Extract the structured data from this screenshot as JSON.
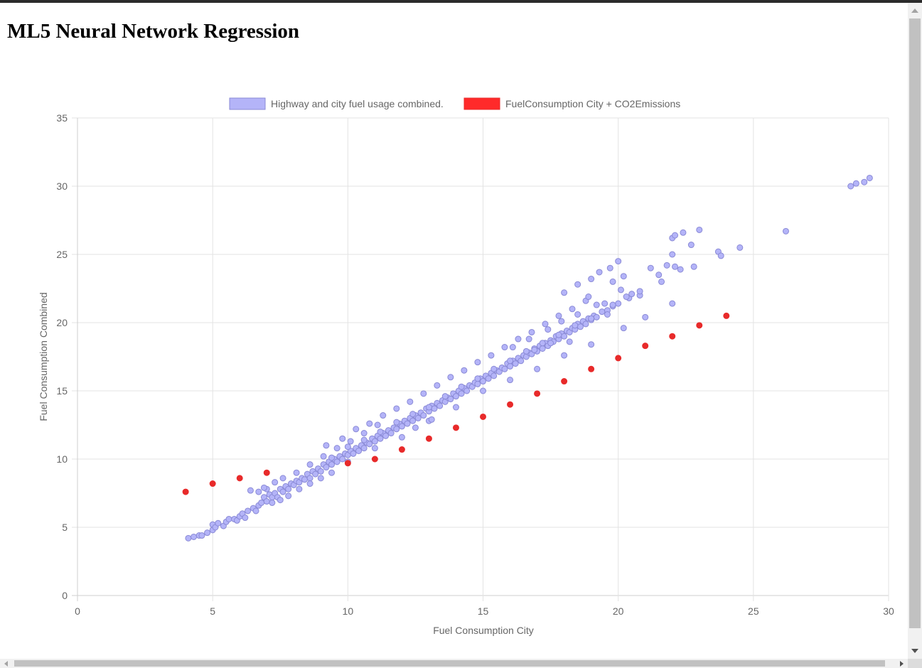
{
  "page": {
    "title": "ML5 Neural Network Regression"
  },
  "colors": {
    "series_a_fill": "#b4b4f8",
    "series_a_stroke": "#8a8ad6",
    "series_b": "#e82a2a",
    "grid": "#e3e3e3",
    "tick_text": "#666666"
  },
  "chart_data": {
    "type": "scatter",
    "xlabel": "Fuel Consumption City",
    "ylabel": "Fuel Consumption Combined",
    "xlim": [
      0,
      30
    ],
    "ylim": [
      0,
      35
    ],
    "xticks": [
      "0",
      "5",
      "10",
      "15",
      "20",
      "25",
      "30"
    ],
    "yticks": [
      "0",
      "5",
      "10",
      "15",
      "20",
      "25",
      "30",
      "35"
    ],
    "grid": true,
    "legend_position": "top",
    "series": [
      {
        "name": "Highway and city fuel usage combined.",
        "points": [
          [
            4.1,
            4.2
          ],
          [
            4.3,
            4.3
          ],
          [
            4.5,
            4.4
          ],
          [
            4.6,
            4.4
          ],
          [
            4.8,
            4.6
          ],
          [
            5.0,
            4.8
          ],
          [
            5.0,
            5.2
          ],
          [
            5.1,
            5.0
          ],
          [
            5.2,
            5.3
          ],
          [
            5.4,
            5.1
          ],
          [
            5.5,
            5.4
          ],
          [
            5.6,
            5.6
          ],
          [
            5.8,
            5.6
          ],
          [
            5.9,
            5.5
          ],
          [
            6.0,
            5.8
          ],
          [
            6.1,
            6.0
          ],
          [
            6.2,
            5.7
          ],
          [
            6.3,
            6.2
          ],
          [
            6.5,
            6.4
          ],
          [
            6.6,
            6.2
          ],
          [
            6.7,
            6.6
          ],
          [
            6.8,
            6.8
          ],
          [
            6.9,
            7.2
          ],
          [
            7.0,
            6.9
          ],
          [
            7.1,
            7.4
          ],
          [
            7.2,
            7.2
          ],
          [
            7.3,
            7.5
          ],
          [
            7.4,
            7.2
          ],
          [
            7.5,
            7.8
          ],
          [
            7.6,
            7.6
          ],
          [
            7.7,
            8.0
          ],
          [
            7.8,
            7.8
          ],
          [
            7.9,
            8.2
          ],
          [
            8.0,
            8.1
          ],
          [
            8.1,
            8.4
          ],
          [
            8.2,
            8.3
          ],
          [
            8.3,
            8.6
          ],
          [
            8.4,
            8.5
          ],
          [
            8.5,
            8.9
          ],
          [
            8.6,
            8.6
          ],
          [
            8.7,
            9.1
          ],
          [
            8.8,
            8.9
          ],
          [
            8.9,
            9.3
          ],
          [
            9.0,
            9.1
          ],
          [
            9.1,
            9.6
          ],
          [
            9.2,
            9.4
          ],
          [
            9.3,
            9.8
          ],
          [
            9.4,
            9.6
          ],
          [
            9.5,
            10.0
          ],
          [
            9.6,
            9.8
          ],
          [
            9.7,
            10.2
          ],
          [
            9.8,
            10.0
          ],
          [
            9.9,
            10.4
          ],
          [
            10.0,
            10.3
          ],
          [
            10.1,
            10.6
          ],
          [
            10.2,
            10.4
          ],
          [
            10.3,
            10.8
          ],
          [
            10.4,
            10.6
          ],
          [
            10.5,
            11.0
          ],
          [
            10.6,
            10.8
          ],
          [
            10.7,
            11.2
          ],
          [
            10.8,
            11.1
          ],
          [
            10.9,
            11.5
          ],
          [
            11.0,
            11.3
          ],
          [
            11.1,
            11.7
          ],
          [
            11.2,
            11.5
          ],
          [
            11.3,
            11.9
          ],
          [
            11.4,
            11.7
          ],
          [
            11.5,
            12.1
          ],
          [
            11.6,
            11.9
          ],
          [
            11.7,
            12.3
          ],
          [
            11.8,
            12.2
          ],
          [
            11.9,
            12.6
          ],
          [
            12.0,
            12.4
          ],
          [
            12.1,
            12.8
          ],
          [
            12.2,
            12.6
          ],
          [
            12.3,
            13.0
          ],
          [
            12.4,
            12.8
          ],
          [
            12.5,
            13.2
          ],
          [
            12.6,
            13.0
          ],
          [
            12.7,
            13.4
          ],
          [
            12.8,
            13.2
          ],
          [
            12.9,
            13.7
          ],
          [
            13.0,
            13.5
          ],
          [
            13.1,
            13.9
          ],
          [
            13.2,
            13.7
          ],
          [
            13.3,
            14.1
          ],
          [
            13.4,
            13.9
          ],
          [
            13.5,
            14.3
          ],
          [
            13.6,
            14.2
          ],
          [
            13.7,
            14.5
          ],
          [
            13.8,
            14.4
          ],
          [
            13.9,
            14.8
          ],
          [
            14.0,
            14.6
          ],
          [
            14.1,
            15.0
          ],
          [
            14.2,
            14.8
          ],
          [
            14.3,
            15.2
          ],
          [
            14.4,
            15.0
          ],
          [
            14.5,
            15.4
          ],
          [
            14.6,
            15.3
          ],
          [
            14.7,
            15.6
          ],
          [
            14.8,
            15.5
          ],
          [
            14.9,
            15.9
          ],
          [
            15.0,
            15.7
          ],
          [
            15.1,
            16.1
          ],
          [
            15.2,
            15.9
          ],
          [
            15.3,
            16.3
          ],
          [
            15.4,
            16.1
          ],
          [
            15.5,
            16.5
          ],
          [
            15.6,
            16.4
          ],
          [
            15.7,
            16.7
          ],
          [
            15.8,
            16.6
          ],
          [
            15.9,
            17.0
          ],
          [
            16.0,
            16.8
          ],
          [
            16.1,
            17.2
          ],
          [
            16.2,
            17.0
          ],
          [
            16.3,
            17.4
          ],
          [
            16.4,
            17.2
          ],
          [
            16.5,
            17.6
          ],
          [
            16.6,
            17.5
          ],
          [
            16.7,
            17.8
          ],
          [
            16.8,
            17.7
          ],
          [
            16.9,
            18.1
          ],
          [
            17.0,
            17.9
          ],
          [
            17.1,
            18.3
          ],
          [
            17.2,
            18.1
          ],
          [
            17.3,
            18.5
          ],
          [
            17.4,
            18.3
          ],
          [
            17.5,
            18.7
          ],
          [
            17.6,
            18.6
          ],
          [
            17.7,
            19.0
          ],
          [
            17.8,
            18.8
          ],
          [
            17.9,
            19.2
          ],
          [
            18.0,
            19.0
          ],
          [
            18.1,
            19.4
          ],
          [
            18.2,
            19.3
          ],
          [
            18.3,
            19.6
          ],
          [
            18.4,
            19.5
          ],
          [
            18.5,
            19.9
          ],
          [
            18.6,
            19.7
          ],
          [
            18.7,
            20.1
          ],
          [
            18.8,
            19.9
          ],
          [
            18.9,
            20.3
          ],
          [
            19.0,
            20.2
          ],
          [
            19.1,
            20.5
          ],
          [
            19.2,
            20.4
          ],
          [
            19.4,
            20.8
          ],
          [
            19.6,
            20.9
          ],
          [
            19.8,
            21.2
          ],
          [
            20.0,
            21.4
          ],
          [
            9.2,
            11.0
          ],
          [
            9.8,
            11.5
          ],
          [
            10.3,
            12.2
          ],
          [
            10.8,
            12.6
          ],
          [
            11.3,
            13.2
          ],
          [
            11.8,
            13.7
          ],
          [
            12.3,
            14.2
          ],
          [
            12.8,
            14.8
          ],
          [
            13.3,
            15.4
          ],
          [
            13.8,
            16.0
          ],
          [
            14.3,
            16.5
          ],
          [
            14.8,
            17.1
          ],
          [
            15.3,
            17.6
          ],
          [
            15.8,
            18.2
          ],
          [
            16.3,
            18.8
          ],
          [
            16.8,
            19.3
          ],
          [
            17.3,
            19.9
          ],
          [
            17.8,
            20.5
          ],
          [
            18.3,
            21.0
          ],
          [
            18.8,
            21.6
          ],
          [
            9.4,
            10.1
          ],
          [
            10.0,
            10.9
          ],
          [
            10.6,
            11.4
          ],
          [
            11.2,
            12.0
          ],
          [
            11.8,
            12.7
          ],
          [
            12.4,
            13.3
          ],
          [
            13.0,
            13.8
          ],
          [
            13.6,
            14.6
          ],
          [
            14.2,
            15.3
          ],
          [
            14.8,
            15.9
          ],
          [
            15.4,
            16.6
          ],
          [
            16.0,
            17.2
          ],
          [
            16.6,
            17.9
          ],
          [
            17.2,
            18.5
          ],
          [
            17.8,
            19.1
          ],
          [
            18.4,
            19.8
          ],
          [
            19.0,
            20.3
          ],
          [
            19.6,
            20.6
          ],
          [
            20.4,
            21.8
          ],
          [
            20.8,
            22.0
          ],
          [
            7.0,
            7.8
          ],
          [
            7.3,
            8.3
          ],
          [
            7.6,
            8.6
          ],
          [
            8.1,
            9.0
          ],
          [
            8.6,
            9.6
          ],
          [
            9.1,
            10.2
          ],
          [
            9.6,
            10.8
          ],
          [
            10.1,
            11.3
          ],
          [
            10.6,
            11.9
          ],
          [
            11.1,
            12.5
          ],
          [
            7.2,
            6.8
          ],
          [
            7.5,
            7.0
          ],
          [
            7.8,
            7.3
          ],
          [
            8.2,
            7.8
          ],
          [
            8.6,
            8.2
          ],
          [
            9.0,
            8.6
          ],
          [
            9.4,
            9.0
          ],
          [
            10.0,
            9.8
          ],
          [
            11.0,
            10.8
          ],
          [
            12.0,
            11.6
          ],
          [
            13.0,
            12.8
          ],
          [
            14.0,
            13.8
          ],
          [
            15.0,
            15.0
          ],
          [
            16.0,
            15.8
          ],
          [
            17.0,
            16.6
          ],
          [
            18.0,
            17.6
          ],
          [
            19.0,
            18.4
          ],
          [
            20.2,
            19.6
          ],
          [
            21.0,
            20.4
          ],
          [
            22.0,
            21.4
          ],
          [
            6.4,
            7.7
          ],
          [
            6.7,
            7.6
          ],
          [
            6.9,
            7.9
          ],
          [
            12.5,
            12.3
          ],
          [
            13.1,
            12.9
          ],
          [
            16.9,
            18.0
          ],
          [
            17.5,
            18.5
          ],
          [
            18.2,
            18.6
          ],
          [
            19.5,
            21.4
          ],
          [
            20.1,
            22.4
          ],
          [
            18.0,
            22.2
          ],
          [
            18.5,
            22.8
          ],
          [
            19.0,
            23.2
          ],
          [
            19.3,
            23.7
          ],
          [
            19.7,
            24.0
          ],
          [
            19.8,
            23.0
          ],
          [
            20.0,
            24.5
          ],
          [
            20.2,
            23.4
          ],
          [
            20.5,
            22.1
          ],
          [
            20.8,
            22.3
          ],
          [
            21.2,
            24.0
          ],
          [
            21.5,
            23.5
          ],
          [
            21.6,
            23.0
          ],
          [
            21.8,
            24.2
          ],
          [
            22.0,
            25.0
          ],
          [
            22.1,
            24.1
          ],
          [
            22.3,
            23.9
          ],
          [
            22.8,
            24.1
          ],
          [
            22.0,
            26.2
          ],
          [
            22.1,
            26.4
          ],
          [
            22.4,
            26.6
          ],
          [
            23.0,
            26.8
          ],
          [
            22.7,
            25.7
          ],
          [
            23.7,
            25.2
          ],
          [
            23.8,
            24.9
          ],
          [
            24.5,
            25.5
          ],
          [
            26.2,
            26.7
          ],
          [
            28.6,
            30.0
          ],
          [
            28.8,
            30.2
          ],
          [
            29.1,
            30.3
          ],
          [
            29.3,
            30.6
          ],
          [
            19.8,
            21.3
          ],
          [
            20.3,
            21.9
          ],
          [
            18.9,
            21.9
          ],
          [
            19.2,
            21.3
          ],
          [
            18.5,
            20.6
          ],
          [
            17.9,
            20.1
          ],
          [
            17.4,
            19.5
          ],
          [
            16.7,
            18.8
          ],
          [
            16.1,
            18.2
          ]
        ]
      },
      {
        "name": "FuelConsumption City + CO2Emissions",
        "points": [
          [
            4,
            7.6
          ],
          [
            5,
            8.2
          ],
          [
            6,
            8.6
          ],
          [
            7,
            9.0
          ],
          [
            10,
            9.7
          ],
          [
            11,
            10.0
          ],
          [
            12,
            10.7
          ],
          [
            13,
            11.5
          ],
          [
            14,
            12.3
          ],
          [
            15,
            13.1
          ],
          [
            16,
            14.0
          ],
          [
            17,
            14.8
          ],
          [
            18,
            15.7
          ],
          [
            19,
            16.6
          ],
          [
            20,
            17.4
          ],
          [
            21,
            18.3
          ],
          [
            22,
            19.0
          ],
          [
            23,
            19.8
          ],
          [
            24,
            20.5
          ]
        ]
      }
    ]
  }
}
